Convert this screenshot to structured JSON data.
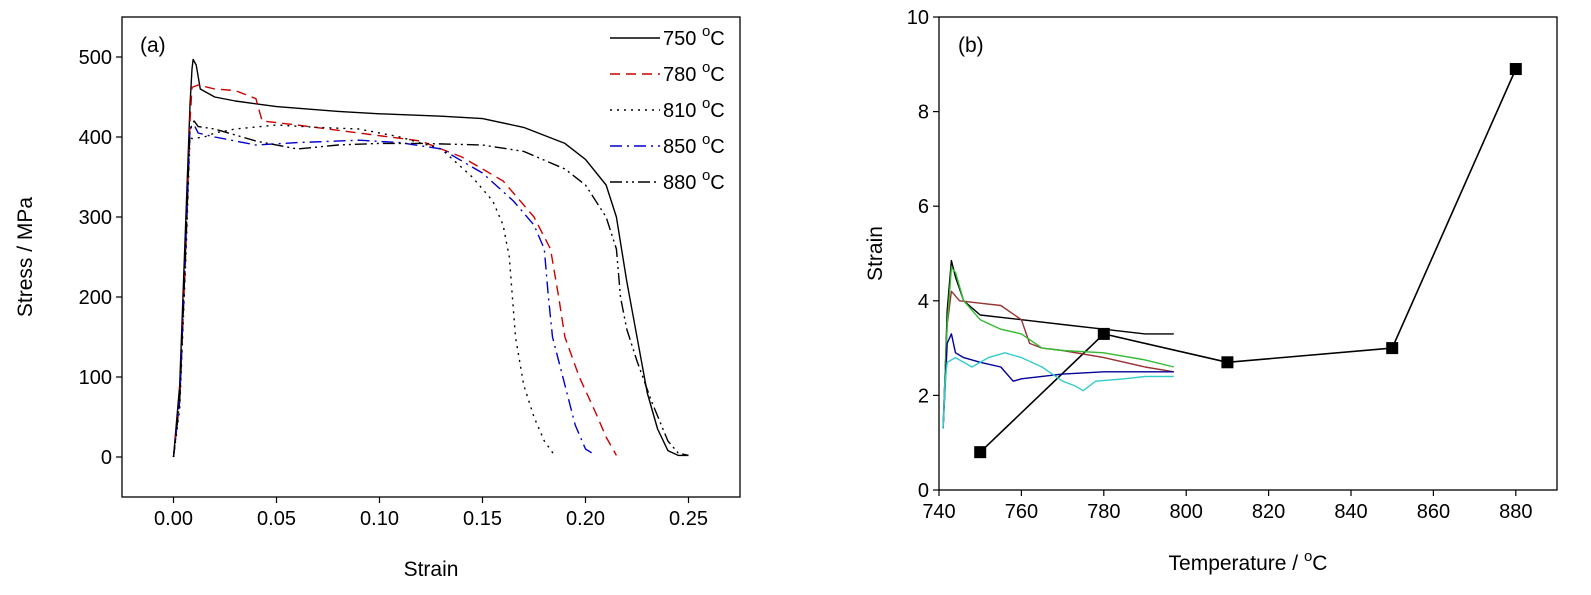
{
  "chart_data": [
    {
      "type": "line",
      "panel_label": "(a)",
      "xlabel": "Strain",
      "ylabel": "Stress / MPa",
      "xlim": [
        -0.025,
        0.275
      ],
      "ylim": [
        -50,
        550
      ],
      "x_ticks": [
        0.0,
        0.05,
        0.1,
        0.15,
        0.2,
        0.25
      ],
      "x_tick_labels": [
        "0.00",
        "0.05",
        "0.10",
        "0.15",
        "0.20",
        "0.25"
      ],
      "y_ticks": [
        0,
        100,
        200,
        300,
        400,
        500
      ],
      "y_tick_labels": [
        "0",
        "100",
        "200",
        "300",
        "400",
        "500"
      ],
      "grid": false,
      "legend_position": "top-right",
      "series": [
        {
          "name": "750 °C",
          "color": "#000000",
          "dash": "solid",
          "points": [
            [
              0,
              0
            ],
            [
              0.003,
              90
            ],
            [
              0.006,
              300
            ],
            [
              0.008,
              440
            ],
            [
              0.009,
              485
            ],
            [
              0.0095,
              497
            ],
            [
              0.011,
              490
            ],
            [
              0.013,
              460
            ],
            [
              0.02,
              450
            ],
            [
              0.03,
              445
            ],
            [
              0.05,
              438
            ],
            [
              0.08,
              432
            ],
            [
              0.1,
              429
            ],
            [
              0.13,
              426
            ],
            [
              0.15,
              423
            ],
            [
              0.17,
              412
            ],
            [
              0.19,
              392
            ],
            [
              0.2,
              372
            ],
            [
              0.21,
              340
            ],
            [
              0.215,
              300
            ],
            [
              0.22,
              220
            ],
            [
              0.225,
              150
            ],
            [
              0.23,
              80
            ],
            [
              0.235,
              35
            ],
            [
              0.24,
              8
            ],
            [
              0.245,
              2
            ],
            [
              0.25,
              2
            ]
          ]
        },
        {
          "name": "780 °C",
          "color": "#cc0000",
          "dash": "dashed",
          "points": [
            [
              0,
              0
            ],
            [
              0.003,
              70
            ],
            [
              0.006,
              260
            ],
            [
              0.008,
              420
            ],
            [
              0.009,
              462
            ],
            [
              0.012,
              465
            ],
            [
              0.02,
              460
            ],
            [
              0.03,
              458
            ],
            [
              0.04,
              448
            ],
            [
              0.043,
              420
            ],
            [
              0.06,
              415
            ],
            [
              0.09,
              405
            ],
            [
              0.12,
              395
            ],
            [
              0.14,
              375
            ],
            [
              0.16,
              345
            ],
            [
              0.175,
              300
            ],
            [
              0.183,
              260
            ],
            [
              0.187,
              200
            ],
            [
              0.19,
              150
            ],
            [
              0.197,
              100
            ],
            [
              0.205,
              55
            ],
            [
              0.21,
              25
            ],
            [
              0.215,
              2
            ]
          ]
        },
        {
          "name": "810 °C",
          "color": "#000000",
          "dash": "dotted",
          "points": [
            [
              0,
              0
            ],
            [
              0.003,
              60
            ],
            [
              0.006,
              250
            ],
            [
              0.008,
              400
            ],
            [
              0.009,
              398
            ],
            [
              0.015,
              400
            ],
            [
              0.02,
              405
            ],
            [
              0.03,
              410
            ],
            [
              0.05,
              415
            ],
            [
              0.07,
              412
            ],
            [
              0.09,
              410
            ],
            [
              0.11,
              400
            ],
            [
              0.13,
              385
            ],
            [
              0.145,
              350
            ],
            [
              0.155,
              320
            ],
            [
              0.16,
              290
            ],
            [
              0.163,
              250
            ],
            [
              0.166,
              150
            ],
            [
              0.17,
              90
            ],
            [
              0.175,
              50
            ],
            [
              0.18,
              20
            ],
            [
              0.185,
              2
            ]
          ]
        },
        {
          "name": "850 °C",
          "color": "#0000cc",
          "dash": "dashdot",
          "points": [
            [
              0,
              0
            ],
            [
              0.003,
              70
            ],
            [
              0.006,
              270
            ],
            [
              0.008,
              410
            ],
            [
              0.01,
              415
            ],
            [
              0.012,
              405
            ],
            [
              0.02,
              400
            ],
            [
              0.03,
              395
            ],
            [
              0.04,
              390
            ],
            [
              0.06,
              393
            ],
            [
              0.09,
              396
            ],
            [
              0.11,
              393
            ],
            [
              0.13,
              385
            ],
            [
              0.15,
              355
            ],
            [
              0.165,
              320
            ],
            [
              0.175,
              290
            ],
            [
              0.18,
              260
            ],
            [
              0.182,
              200
            ],
            [
              0.184,
              150
            ],
            [
              0.19,
              90
            ],
            [
              0.195,
              40
            ],
            [
              0.2,
              10
            ],
            [
              0.205,
              2
            ]
          ]
        },
        {
          "name": "880 °C",
          "color": "#000000",
          "dash": "dashdotdot",
          "points": [
            [
              0,
              0
            ],
            [
              0.003,
              70
            ],
            [
              0.006,
              270
            ],
            [
              0.008,
              410
            ],
            [
              0.01,
              420
            ],
            [
              0.012,
              413
            ],
            [
              0.02,
              410
            ],
            [
              0.04,
              395
            ],
            [
              0.06,
              385
            ],
            [
              0.08,
              390
            ],
            [
              0.1,
              392
            ],
            [
              0.12,
              392
            ],
            [
              0.15,
              390
            ],
            [
              0.17,
              382
            ],
            [
              0.19,
              360
            ],
            [
              0.2,
              340
            ],
            [
              0.21,
              300
            ],
            [
              0.215,
              260
            ],
            [
              0.217,
              200
            ],
            [
              0.22,
              160
            ],
            [
              0.225,
              120
            ],
            [
              0.232,
              70
            ],
            [
              0.24,
              20
            ],
            [
              0.245,
              5
            ],
            [
              0.25,
              2
            ]
          ]
        }
      ]
    },
    {
      "type": "line",
      "panel_label": "(b)",
      "xlabel": "Temperature / °C",
      "ylabel": "Strain",
      "xlim": [
        740,
        890
      ],
      "ylim": [
        0,
        10
      ],
      "x_ticks": [
        740,
        760,
        780,
        800,
        820,
        840,
        860,
        880
      ],
      "x_tick_labels": [
        "740",
        "760",
        "780",
        "800",
        "820",
        "840",
        "860",
        "880"
      ],
      "y_ticks": [
        0,
        2,
        4,
        6,
        8,
        10
      ],
      "y_tick_labels": [
        "0",
        "2",
        "4",
        "6",
        "8",
        "10"
      ],
      "grid": false,
      "series": [
        {
          "color": "#000000",
          "marker": "square",
          "x": [
            750,
            780,
            810,
            850,
            880
          ],
          "y": [
            0.8,
            3.3,
            2.7,
            3.0,
            8.9
          ]
        },
        {
          "color": "#000000",
          "marker": "none",
          "points": [
            [
              741,
              1.3
            ],
            [
              741.5,
              2.5
            ],
            [
              742,
              3.8
            ],
            [
              743,
              4.85
            ],
            [
              744,
              4.5
            ],
            [
              746,
              4.0
            ],
            [
              750,
              3.7
            ],
            [
              760,
              3.6
            ],
            [
              770,
              3.5
            ],
            [
              780,
              3.4
            ],
            [
              790,
              3.3
            ],
            [
              797,
              3.3
            ]
          ]
        },
        {
          "color": "#993333",
          "marker": "none",
          "points": [
            [
              741,
              1.3
            ],
            [
              741.5,
              2.5
            ],
            [
              742,
              3.5
            ],
            [
              743,
              4.2
            ],
            [
              745,
              4.0
            ],
            [
              750,
              3.95
            ],
            [
              755,
              3.9
            ],
            [
              760,
              3.6
            ],
            [
              762,
              3.1
            ],
            [
              765,
              3.0
            ],
            [
              770,
              2.95
            ],
            [
              780,
              2.8
            ],
            [
              790,
              2.6
            ],
            [
              797,
              2.5
            ]
          ]
        },
        {
          "color": "#33bb33",
          "marker": "none",
          "points": [
            [
              741,
              1.3
            ],
            [
              741.5,
              2.5
            ],
            [
              742,
              3.5
            ],
            [
              743,
              4.7
            ],
            [
              744,
              4.6
            ],
            [
              746,
              4.0
            ],
            [
              750,
              3.6
            ],
            [
              755,
              3.4
            ],
            [
              760,
              3.3
            ],
            [
              765,
              3.0
            ],
            [
              770,
              2.95
            ],
            [
              780,
              2.9
            ],
            [
              790,
              2.75
            ],
            [
              797,
              2.6
            ]
          ]
        },
        {
          "color": "#000099",
          "marker": "none",
          "points": [
            [
              741,
              1.3
            ],
            [
              741.5,
              2.2
            ],
            [
              742,
              3.1
            ],
            [
              743,
              3.3
            ],
            [
              744,
              2.9
            ],
            [
              746,
              2.8
            ],
            [
              750,
              2.7
            ],
            [
              755,
              2.6
            ],
            [
              758,
              2.3
            ],
            [
              760,
              2.35
            ],
            [
              770,
              2.45
            ],
            [
              780,
              2.5
            ],
            [
              790,
              2.5
            ],
            [
              797,
              2.5
            ]
          ]
        },
        {
          "color": "#33cccc",
          "marker": "none",
          "points": [
            [
              741,
              1.3
            ],
            [
              741.5,
              2.3
            ],
            [
              742,
              2.7
            ],
            [
              744,
              2.8
            ],
            [
              748,
              2.6
            ],
            [
              752,
              2.8
            ],
            [
              756,
              2.9
            ],
            [
              760,
              2.8
            ],
            [
              765,
              2.6
            ],
            [
              770,
              2.3
            ],
            [
              773,
              2.2
            ],
            [
              775,
              2.1
            ],
            [
              778,
              2.3
            ],
            [
              785,
              2.35
            ],
            [
              790,
              2.4
            ],
            [
              797,
              2.4
            ]
          ]
        }
      ]
    }
  ]
}
